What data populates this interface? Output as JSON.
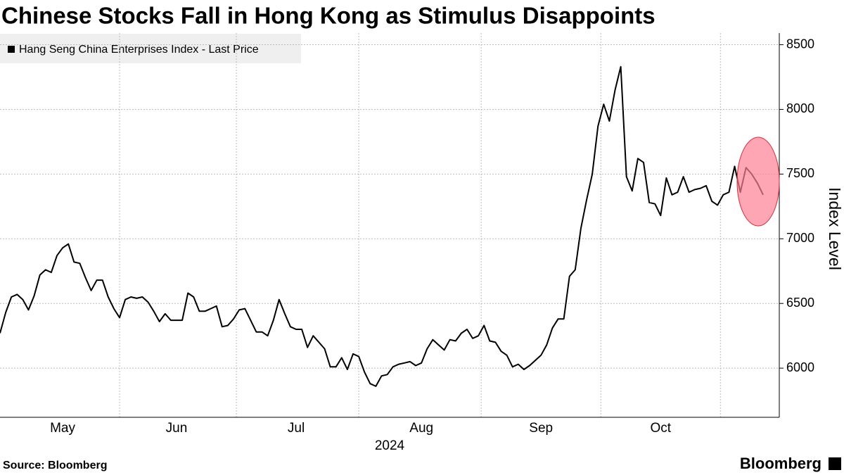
{
  "chart_data": {
    "type": "line",
    "title": "Chinese Stocks Fall in Hong Kong as Stimulus Disappoints",
    "xlabel": "2024",
    "ylabel": "Index Level",
    "source": "Source: Bloomberg",
    "brand": "Bloomberg",
    "categories": [
      null,
      null,
      null,
      null,
      null,
      null,
      null,
      null,
      null,
      null,
      null,
      "May",
      null,
      null,
      null,
      null,
      null,
      null,
      null,
      null,
      null,
      null,
      null,
      null,
      null,
      null,
      null,
      null,
      null,
      null,
      null,
      "Jun",
      null,
      null,
      null,
      null,
      null,
      null,
      null,
      null,
      null,
      null,
      null,
      null,
      null,
      null,
      null,
      null,
      null,
      null,
      null,
      null,
      "Jul",
      null,
      null,
      null,
      null,
      null,
      null,
      null,
      null,
      null,
      null,
      null,
      null,
      null,
      null,
      null,
      null,
      null,
      null,
      null,
      null,
      null,
      "Aug",
      null,
      null,
      null,
      null,
      null,
      null,
      null,
      null,
      null,
      null,
      null,
      null,
      null,
      null,
      null,
      null,
      null,
      null,
      null,
      null,
      "Sep",
      null,
      null,
      null,
      null,
      null,
      null,
      null,
      null,
      null,
      null,
      null,
      null,
      null,
      null,
      null,
      null,
      null,
      null,
      null,
      null,
      "Oct",
      null,
      null,
      null,
      null,
      null,
      null,
      null,
      null,
      null,
      null,
      null,
      null,
      null,
      null,
      null,
      null,
      null,
      null
    ],
    "series": [
      {
        "name": "Hang Seng China Enterprises Index - Last Price",
        "color": "#000000",
        "values": [
          6270,
          6430,
          6550,
          6570,
          6530,
          6450,
          6560,
          6720,
          6760,
          6740,
          6870,
          6930,
          6960,
          6820,
          6810,
          6700,
          6600,
          6680,
          6680,
          6550,
          6460,
          6390,
          6530,
          6550,
          6540,
          6550,
          6510,
          6440,
          6360,
          6420,
          6370,
          6370,
          6370,
          6580,
          6550,
          6440,
          6440,
          6460,
          6480,
          6320,
          6330,
          6380,
          6450,
          6460,
          6370,
          6280,
          6280,
          6250,
          6370,
          6530,
          6420,
          6320,
          6300,
          6300,
          6160,
          6250,
          6200,
          6150,
          6010,
          6010,
          6080,
          5990,
          6110,
          6090,
          5970,
          5880,
          5860,
          5940,
          5950,
          6010,
          6030,
          6040,
          6050,
          6020,
          6040,
          6150,
          6220,
          6180,
          6140,
          6220,
          6210,
          6270,
          6300,
          6230,
          6250,
          6330,
          6210,
          6200,
          6130,
          6100,
          6010,
          6030,
          5990,
          6020,
          6060,
          6100,
          6180,
          6310,
          6380,
          6380,
          6710,
          6760,
          7080,
          7300,
          7500,
          7870,
          8040,
          7910,
          8150,
          8330,
          7480,
          7370,
          7620,
          7590,
          7280,
          7270,
          7180,
          7470,
          7340,
          7360,
          7480,
          7360,
          7380,
          7390,
          7410,
          7290,
          7260,
          7340,
          7360,
          7560,
          7360,
          7550,
          7500,
          7430,
          7340
        ]
      }
    ],
    "ylim": [
      5620,
      8590
    ],
    "yticks": [
      6000,
      6500,
      7000,
      7500,
      8000,
      8500
    ],
    "grid": true,
    "y_axis_side": "right"
  }
}
